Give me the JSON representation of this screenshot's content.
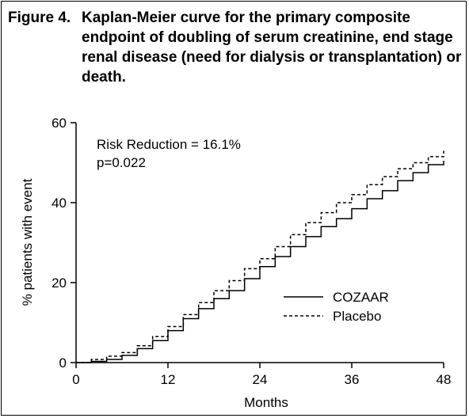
{
  "figure": {
    "label": "Figure 4.",
    "title": "Kaplan-Meier curve for the primary composite endpoint of doubling of serum creatinine, end stage renal disease (need for dialysis or transplantation) or death."
  },
  "chart_data": {
    "type": "line",
    "xlabel": "Months",
    "ylabel": "% patients with event",
    "xlim": [
      0,
      48
    ],
    "ylim": [
      0,
      60
    ],
    "xticks": [
      0,
      12,
      24,
      36,
      48
    ],
    "yticks": [
      0,
      20,
      40,
      60
    ],
    "grid": false,
    "legend_position": "bottom-right",
    "annotations": [
      "Risk Reduction = 16.1%",
      "p=0.022"
    ],
    "series": [
      {
        "name": "COZAAR",
        "style": "solid",
        "x": [
          0,
          2,
          4,
          6,
          8,
          10,
          12,
          14,
          16,
          18,
          20,
          22,
          24,
          26,
          28,
          30,
          32,
          34,
          36,
          38,
          40,
          42,
          44,
          46,
          48
        ],
        "y": [
          0,
          0.3,
          0.8,
          1.8,
          3.5,
          5.5,
          8,
          11,
          13.5,
          16,
          18,
          21,
          24,
          26.5,
          29,
          31.5,
          34,
          36,
          38.5,
          41,
          43,
          45.5,
          47.5,
          49.5,
          50.5
        ]
      },
      {
        "name": "Placebo",
        "style": "dashed",
        "x": [
          0,
          2,
          4,
          6,
          8,
          10,
          12,
          14,
          16,
          18,
          20,
          22,
          24,
          26,
          28,
          30,
          32,
          34,
          36,
          38,
          40,
          42,
          44,
          46,
          48
        ],
        "y": [
          0,
          0.8,
          1.6,
          2.5,
          4.2,
          6.5,
          9,
          12,
          15,
          18,
          20.5,
          23.5,
          26,
          29,
          32,
          35,
          37.5,
          40,
          42,
          44.5,
          46.5,
          48.5,
          50,
          51.5,
          53
        ]
      }
    ]
  }
}
